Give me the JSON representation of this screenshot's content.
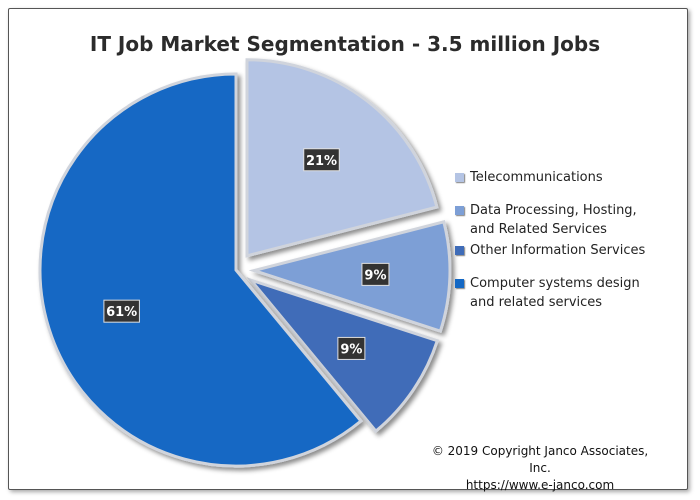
{
  "chart_data": {
    "type": "pie",
    "title": "IT Job Market Segmentation - 3.5 million Jobs",
    "slices": [
      {
        "label": "Telecommunications",
        "value": 21,
        "display": "21%",
        "color": "#b4c4e4",
        "exploded": true
      },
      {
        "label": "Data Processing, Hosting, and Related Services",
        "value": 9,
        "display": "9%",
        "color": "#7d9fd6",
        "exploded": true
      },
      {
        "label": "Other Information Services",
        "value": 9,
        "display": "9%",
        "color": "#3f6cb8",
        "exploded": true
      },
      {
        "label": "Computer systems design and related services",
        "value": 61,
        "display": "61%",
        "color": "#1468c4",
        "exploded": false
      }
    ],
    "legend_placement": "right"
  },
  "legend": {
    "line1": [
      "Telecommunications"
    ],
    "line2": [
      "Data Processing, Hosting,",
      "and Related Services"
    ],
    "line3": [
      "Other Information Services"
    ],
    "line4": [
      "Computer systems design",
      "and related services"
    ]
  },
  "footer": {
    "copyright": "© 2019 Copyright Janco Associates, Inc.",
    "url": "https://www.e-janco.com"
  }
}
